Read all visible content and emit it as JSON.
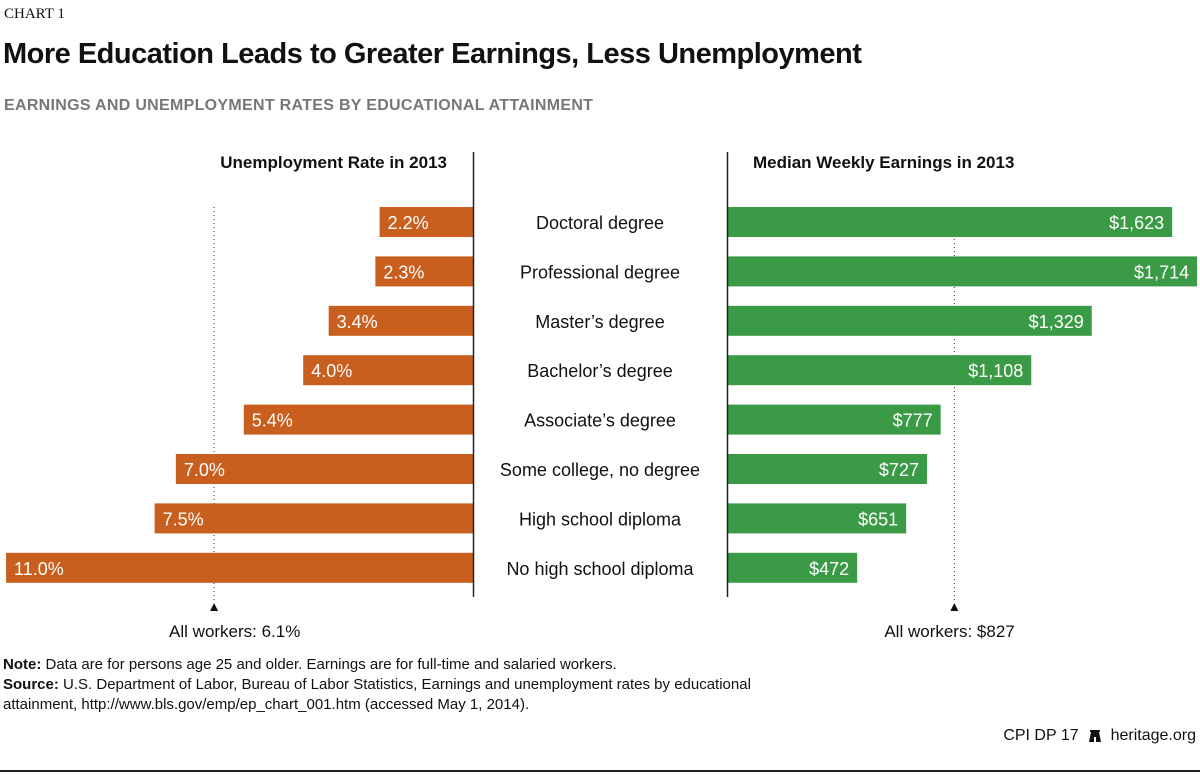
{
  "header": {
    "label": "CHART 1",
    "title": "More Education Leads to Greater Earnings, Less Unemployment",
    "subtitle": "EARNINGS AND UNEMPLOYMENT RATES BY EDUCATIONAL ATTAINMENT"
  },
  "chart_data": [
    {
      "type": "bar",
      "orientation": "horizontal-left",
      "title": "Unemployment Rate in 2013",
      "categories": [
        "Doctoral degree",
        "Professional degree",
        "Master’s degree",
        "Bachelor’s degree",
        "Associate’s degree",
        "Some college, no degree",
        "High school diploma",
        "No high school diploma"
      ],
      "values": [
        2.2,
        2.3,
        3.4,
        4.0,
        5.4,
        7.0,
        7.5,
        11.0
      ],
      "labels": [
        "2.2%",
        "2.3%",
        "3.4%",
        "4.0%",
        "5.4%",
        "7.0%",
        "7.5%",
        "11.0%"
      ],
      "reference": {
        "value": 6.1,
        "label": "All workers: 6.1%"
      },
      "color": "#c85f1e"
    },
    {
      "type": "bar",
      "orientation": "horizontal-right",
      "title": "Median Weekly Earnings in 2013",
      "categories": [
        "Doctoral degree",
        "Professional degree",
        "Master’s degree",
        "Bachelor’s degree",
        "Associate’s degree",
        "Some college, no degree",
        "High school diploma",
        "No high school diploma"
      ],
      "values": [
        1623,
        1714,
        1329,
        1108,
        777,
        727,
        651,
        472
      ],
      "labels": [
        "$1,623",
        "$1,714",
        "$1,329",
        "$1,108",
        "$777",
        "$727",
        "$651",
        "$472"
      ],
      "reference": {
        "value": 827,
        "label": "All workers: $827"
      },
      "color": "#3a9a45"
    }
  ],
  "footer": {
    "note_label": "Note:",
    "note": " Data are for persons age 25 and older. Earnings are for full-time and salaried workers.",
    "source_label": "Source:",
    "source": " U.S. Department of Labor, Bureau of Labor Statistics, Earnings and unemployment rates by educational attainment, http://www.bls.gov/emp/ep_chart_001.htm (accessed May 1, 2014).",
    "code": "CPI DP 17",
    "site": "heritage.org",
    "logo_icon": "liberty-bell-icon"
  }
}
